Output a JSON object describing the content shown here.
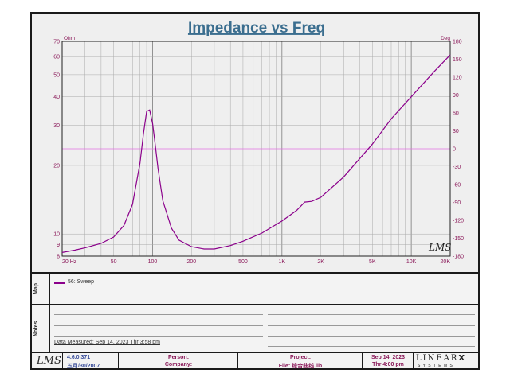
{
  "chart_data": {
    "type": "line",
    "title": "Impedance vs Freq",
    "y_left_unit": "Ohm",
    "y_right_unit": "Deg",
    "xscale": "log",
    "xlim": [
      20,
      20000
    ],
    "ylim": [
      8,
      70
    ],
    "yscale": "log",
    "y2lim": [
      -180,
      180
    ],
    "x_tick_labels": [
      "20 Hz",
      "50",
      "100",
      "200",
      "500",
      "1K",
      "2K",
      "5K",
      "10K",
      "20K"
    ],
    "x_tick_values": [
      20,
      50,
      100,
      200,
      500,
      1000,
      2000,
      5000,
      10000,
      20000
    ],
    "y_tick_labels": [
      "70",
      "60",
      "50",
      "40",
      "30",
      "20",
      "10",
      "9",
      "8"
    ],
    "y_tick_values": [
      70,
      60,
      50,
      40,
      30,
      20,
      10,
      9,
      8
    ],
    "y2_tick_labels": [
      "180",
      "150",
      "120",
      "90",
      "60",
      "30",
      "0",
      "-30",
      "-60",
      "-90",
      "-120",
      "-150",
      "-180"
    ],
    "y2_tick_values": [
      180,
      150,
      120,
      90,
      60,
      30,
      0,
      -30,
      -60,
      -90,
      -120,
      -150,
      -180
    ],
    "grid": true,
    "series": [
      {
        "name": "56: Sweep",
        "color": "#8b008b",
        "x": [
          20,
          25,
          30,
          40,
          50,
          60,
          70,
          80,
          85,
          90,
          95,
          100,
          105,
          110,
          120,
          140,
          160,
          200,
          250,
          300,
          400,
          500,
          700,
          1000,
          1300,
          1500,
          1700,
          2000,
          3000,
          5000,
          7000,
          10000,
          15000,
          20000
        ],
        "values": [
          8.3,
          8.5,
          8.7,
          9.1,
          9.7,
          10.9,
          13.5,
          20.5,
          27.5,
          34.5,
          35.0,
          30.5,
          24.5,
          19.5,
          14.0,
          10.6,
          9.4,
          8.8,
          8.6,
          8.6,
          8.9,
          9.3,
          10.1,
          11.4,
          12.7,
          13.8,
          13.9,
          14.5,
          17.8,
          24.8,
          32.0,
          40.0,
          51.5,
          61.0
        ]
      }
    ],
    "reference_line": {
      "axis": "y2",
      "value": 0,
      "color": "#e070e0"
    }
  },
  "legend": {
    "section_label": "Map",
    "entry": "56: Sweep"
  },
  "notes": {
    "section_label": "Notes",
    "measured": "Data Measured: Sep 14, 2023  Thr  3:58 pm"
  },
  "footer": {
    "logo": "LMS",
    "version": "4.6.0.371",
    "version_date": "五月/30/2007",
    "person_label": "Person:",
    "company_label": "Company:",
    "project_label": "Project:",
    "file_label": "File: 综合曲线.lib",
    "date": "Sep 14, 2023",
    "time": "Thr  4:00 pm",
    "brand": "LINEAR",
    "brand_x": "X",
    "brand_sub": "S Y S T E M S"
  },
  "plot_logo": "LMS"
}
